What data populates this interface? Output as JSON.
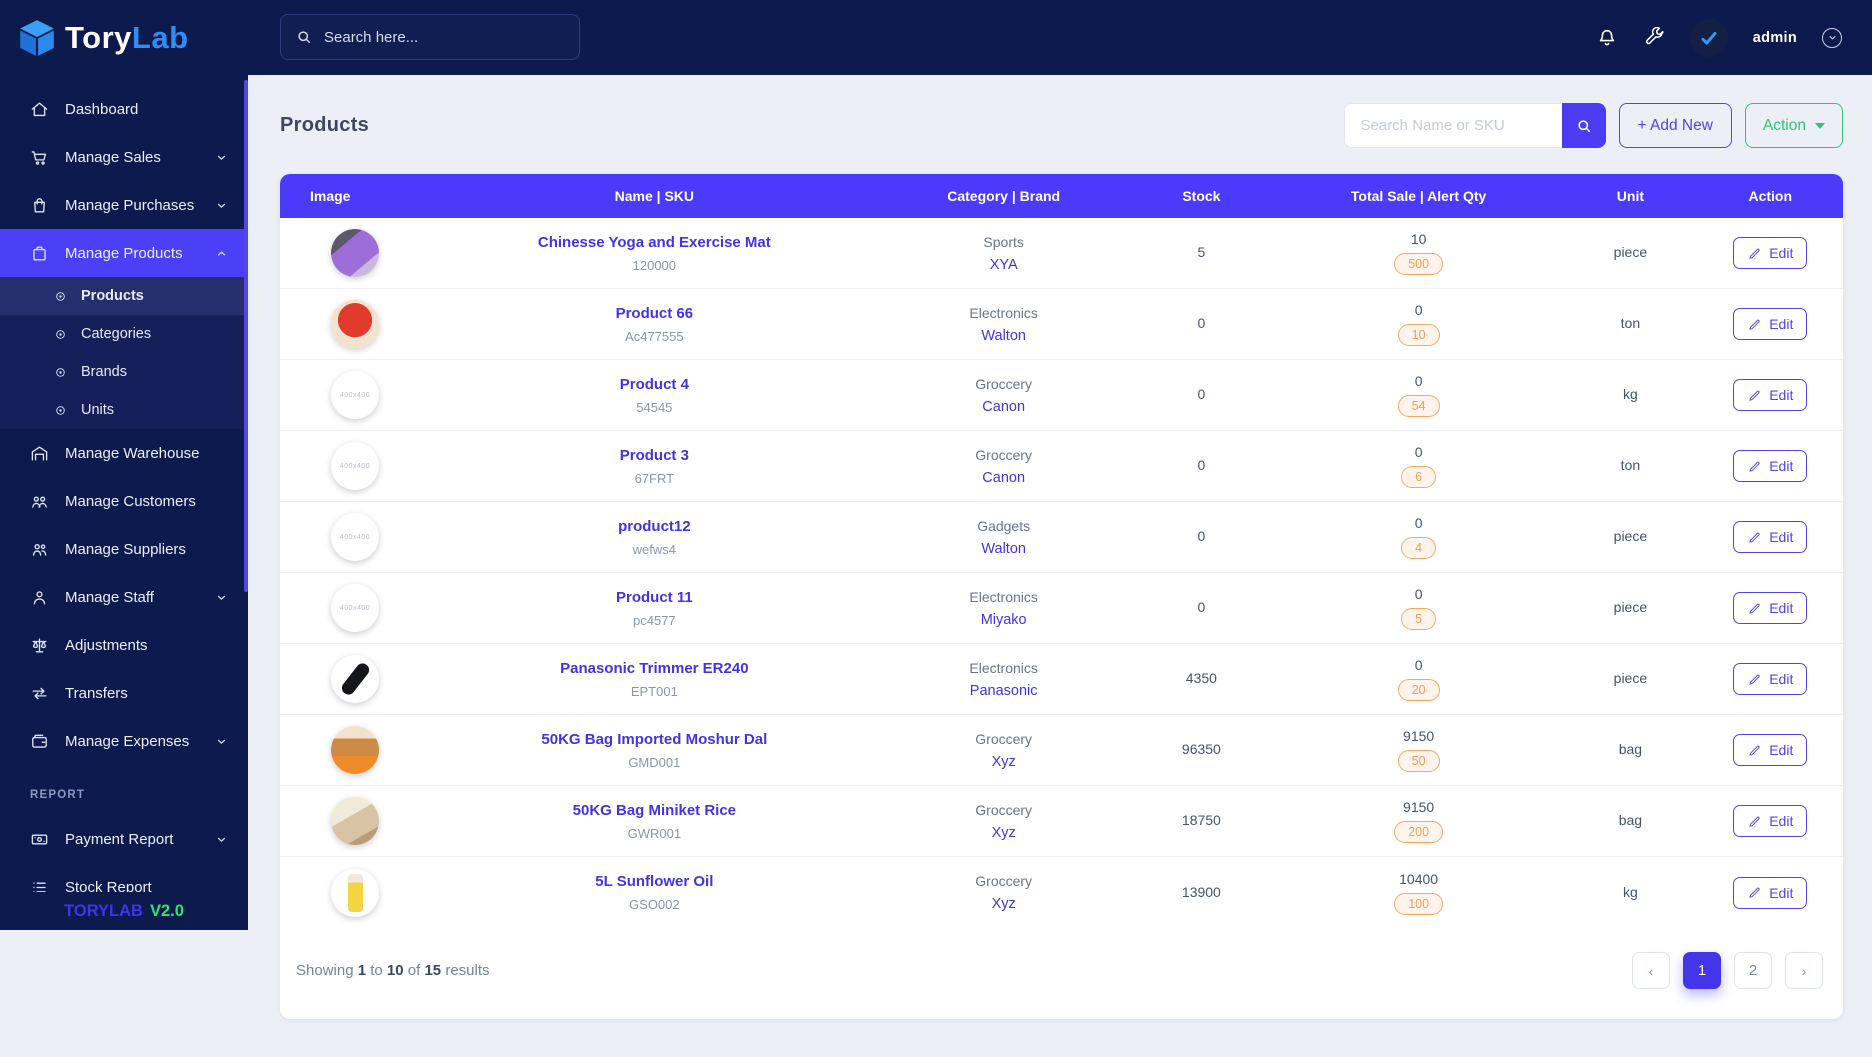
{
  "brand": {
    "name_primary": "Tory",
    "name_secondary": "Lab",
    "footer_name": "TORYLAB",
    "footer_version": "V2.0"
  },
  "topbar": {
    "search_placeholder": "Search here...",
    "username": "admin"
  },
  "sidebar": {
    "items": [
      {
        "label": "Dashboard",
        "icon": "home",
        "type": "item"
      },
      {
        "label": "Manage Sales",
        "icon": "cart",
        "type": "item",
        "chevron": "down"
      },
      {
        "label": "Manage Purchases",
        "icon": "purchase-bag",
        "type": "item",
        "chevron": "down"
      },
      {
        "label": "Manage Products",
        "icon": "product-bag",
        "type": "item",
        "chevron": "up",
        "active": true
      },
      {
        "label": "Products",
        "icon": "dot",
        "type": "sub",
        "active": true
      },
      {
        "label": "Categories",
        "icon": "dot",
        "type": "sub"
      },
      {
        "label": "Brands",
        "icon": "dot",
        "type": "sub"
      },
      {
        "label": "Units",
        "icon": "dot",
        "type": "sub"
      },
      {
        "label": "Manage Warehouse",
        "icon": "warehouse",
        "type": "item"
      },
      {
        "label": "Manage Customers",
        "icon": "customers",
        "type": "item"
      },
      {
        "label": "Manage Suppliers",
        "icon": "suppliers",
        "type": "item"
      },
      {
        "label": "Manage Staff",
        "icon": "staff",
        "type": "item",
        "chevron": "down"
      },
      {
        "label": "Adjustments",
        "icon": "scale",
        "type": "item"
      },
      {
        "label": "Transfers",
        "icon": "transfer",
        "type": "item"
      },
      {
        "label": "Manage Expenses",
        "icon": "wallet",
        "type": "item",
        "chevron": "down"
      },
      {
        "label": "REPORT",
        "type": "section"
      },
      {
        "label": "Payment Report",
        "icon": "payment",
        "type": "item",
        "chevron": "down"
      },
      {
        "label": "Stock Report",
        "icon": "stock-list",
        "type": "item"
      }
    ]
  },
  "page": {
    "title": "Products"
  },
  "toolbar": {
    "search_placeholder": "Search Name or SKU",
    "add_new_label": "+ Add New",
    "action_label": "Action"
  },
  "table": {
    "columns": [
      "Image",
      "Name | SKU",
      "Category | Brand",
      "Stock",
      "Total Sale | Alert Qty",
      "Unit",
      "Action"
    ],
    "edit_label": "Edit",
    "placeholder_image_label": "400x400"
  },
  "products": [
    {
      "name": "Chinesse Yoga and Exercise Mat",
      "sku": "120000",
      "category": "Sports",
      "brand": "XYA",
      "stock": "5",
      "total_sale": "10",
      "alert_qty": "500",
      "unit": "piece",
      "image": {
        "kind": "photo",
        "style": "mat",
        "alt": "yoga-mat-photo"
      }
    },
    {
      "name": "Product 66",
      "sku": "Ac477555",
      "category": "Electronics",
      "brand": "Walton",
      "stock": "0",
      "total_sale": "0",
      "alert_qty": "10",
      "unit": "ton",
      "image": {
        "kind": "photo",
        "style": "crackers",
        "alt": "red-product-photo"
      }
    },
    {
      "name": "Product 4",
      "sku": "54545",
      "category": "Groccery",
      "brand": "Canon",
      "stock": "0",
      "total_sale": "0",
      "alert_qty": "54",
      "unit": "kg",
      "image": {
        "kind": "placeholder"
      }
    },
    {
      "name": "Product 3",
      "sku": "67FRT",
      "category": "Groccery",
      "brand": "Canon",
      "stock": "0",
      "total_sale": "0",
      "alert_qty": "6",
      "unit": "ton",
      "image": {
        "kind": "placeholder"
      }
    },
    {
      "name": "product12",
      "sku": "wefws4",
      "category": "Gadgets",
      "brand": "Walton",
      "stock": "0",
      "total_sale": "0",
      "alert_qty": "4",
      "unit": "piece",
      "image": {
        "kind": "placeholder"
      }
    },
    {
      "name": "Product 11",
      "sku": "pc4577",
      "category": "Electronics",
      "brand": "Miyako",
      "stock": "0",
      "total_sale": "0",
      "alert_qty": "5",
      "unit": "piece",
      "image": {
        "kind": "placeholder"
      }
    },
    {
      "name": "Panasonic Trimmer ER240",
      "sku": "EPT001",
      "category": "Electronics",
      "brand": "Panasonic",
      "stock": "4350",
      "total_sale": "0",
      "alert_qty": "20",
      "unit": "piece",
      "image": {
        "kind": "photo",
        "style": "trimmer",
        "alt": "trimmer-photo"
      }
    },
    {
      "name": "50KG Bag Imported Moshur Dal",
      "sku": "GMD001",
      "category": "Groccery",
      "brand": "Xyz",
      "stock": "96350",
      "total_sale": "9150",
      "alert_qty": "50",
      "unit": "bag",
      "image": {
        "kind": "photo",
        "style": "dal",
        "alt": "dal-bag-photo"
      }
    },
    {
      "name": "50KG Bag Miniket Rice",
      "sku": "GWR001",
      "category": "Groccery",
      "brand": "Xyz",
      "stock": "18750",
      "total_sale": "9150",
      "alert_qty": "200",
      "unit": "bag",
      "image": {
        "kind": "photo",
        "style": "rice",
        "alt": "rice-bag-photo"
      }
    },
    {
      "name": "5L Sunflower Oil",
      "sku": "GSO002",
      "category": "Groccery",
      "brand": "Xyz",
      "stock": "13900",
      "total_sale": "10400",
      "alert_qty": "100",
      "unit": "kg",
      "image": {
        "kind": "photo",
        "style": "oil",
        "alt": "oil-bottle-photo"
      }
    }
  ],
  "footer": {
    "showing_prefix": "Showing",
    "from": "1",
    "to_word": "to",
    "to": "10",
    "of_word": "of",
    "total": "15",
    "suffix": "results"
  },
  "pagination": {
    "prev": "‹",
    "pages": [
      "1",
      "2"
    ],
    "active_page": "1",
    "next": "›"
  },
  "colors": {
    "accent": "#4b3df8",
    "header_purple": "#4a3af9",
    "green": "#2fc573",
    "navy": "#0d1a4e",
    "badge_orange": "#f2a05e"
  }
}
